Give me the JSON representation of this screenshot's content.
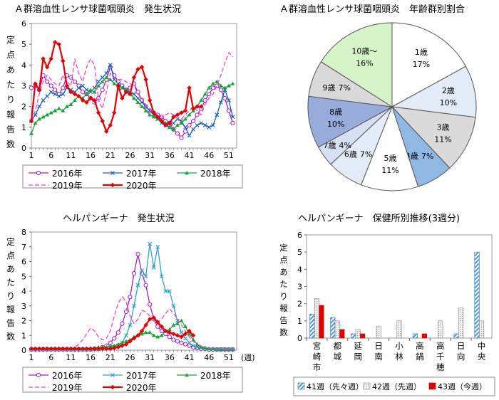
{
  "panels": {
    "strep_weekly_title": "Ａ群溶血性レンサ球菌咽頭炎　発生状況",
    "strep_age_title": "Ａ群溶血性レンサ球菌咽頭炎　年齢群別割合",
    "herp_weekly_title": "ヘルパンギーナ　発生状況",
    "herp_health_title": "ヘルパンギーナ　保健所別推移(3週分)"
  },
  "chart_data": [
    {
      "type": "line",
      "title": "Ａ群溶血性レンサ球菌咽頭炎　発生状況",
      "ylabel": "定点あたり報告数",
      "xlabel": "",
      "x_tick_labels": [
        "1",
        "6",
        "11",
        "16",
        "21",
        "26",
        "31",
        "36",
        "41",
        "46",
        "51"
      ],
      "y_tick_labels": [
        "0",
        "1",
        "2",
        "3",
        "4",
        "5",
        "6"
      ],
      "ylim": [
        0,
        6
      ],
      "xlim": [
        1,
        53
      ],
      "legend_position": "bottom",
      "series": [
        {
          "name": "2016年",
          "color": "#a020c0",
          "marker": "circle-open",
          "dash": "solid",
          "values": [
            2.9,
            3.0,
            2.8,
            3.5,
            3.2,
            3.0,
            2.8,
            2.6,
            2.9,
            3.5,
            3.4,
            3.2,
            3.0,
            2.7,
            2.6,
            2.4,
            2.2,
            2.4,
            2.8,
            3.3,
            3.9,
            3.5,
            3.2,
            3.0,
            2.8,
            2.9,
            3.1,
            2.7,
            2.3,
            2.0,
            1.8,
            1.7,
            1.6,
            1.5,
            1.3,
            1.2,
            0.9,
            0.7,
            0.5,
            0.8,
            1.1,
            1.3,
            1.6,
            1.9,
            2.3,
            2.6,
            2.9,
            3.0,
            2.8,
            2.4,
            1.8,
            1.2
          ]
        },
        {
          "name": "2017年",
          "color": "#2060b0",
          "marker": "x",
          "dash": "solid",
          "values": [
            1.3,
            1.6,
            2.0,
            2.3,
            2.5,
            2.7,
            2.6,
            2.5,
            2.6,
            2.9,
            2.8,
            2.7,
            2.9,
            3.0,
            2.8,
            2.7,
            2.9,
            3.2,
            3.4,
            3.6,
            4.0,
            3.3,
            3.1,
            2.9,
            2.8,
            2.7,
            2.6,
            2.4,
            2.2,
            2.0,
            1.8,
            1.6,
            1.4,
            1.2,
            1.1,
            1.0,
            1.2,
            1.4,
            1.3,
            1.0,
            0.6,
            0.9,
            1.1,
            1.2,
            1.1,
            1.0,
            1.1,
            1.6,
            2.2,
            2.8,
            2.3,
            1.5
          ]
        },
        {
          "name": "2018年",
          "color": "#20a040",
          "marker": "triangle",
          "dash": "solid",
          "values": [
            0.7,
            1.2,
            1.4,
            1.5,
            1.6,
            1.7,
            1.8,
            1.9,
            1.8,
            2.0,
            2.1,
            2.3,
            2.5,
            2.4,
            2.6,
            2.8,
            2.7,
            3.0,
            3.2,
            3.4,
            3.3,
            3.1,
            3.0,
            2.9,
            2.8,
            2.6,
            2.4,
            2.2,
            2.0,
            1.8,
            1.6,
            1.5,
            1.4,
            1.3,
            1.2,
            1.0,
            0.9,
            1.1,
            1.2,
            1.4,
            1.6,
            1.8,
            2.0,
            2.3,
            2.6,
            2.9,
            3.1,
            3.2,
            3.0,
            2.9,
            3.0,
            3.1
          ]
        },
        {
          "name": "2019年",
          "color": "#ee44cc",
          "marker": "none",
          "dash": "dashed",
          "values": [
            1.3,
            1.8,
            2.6,
            3.2,
            3.5,
            3.3,
            3.1,
            3.0,
            3.5,
            3.2,
            3.0,
            4.3,
            3.6,
            3.2,
            3.9,
            4.3,
            4.0,
            2.3,
            1.9,
            2.7,
            3.6,
            3.4,
            3.3,
            3.3,
            3.2,
            3.1,
            3.0,
            2.6,
            2.4,
            2.1,
            1.9,
            1.7,
            1.6,
            1.5,
            1.6,
            1.7,
            1.6,
            1.4,
            1.4,
            1.6,
            1.8,
            2.0,
            1.8,
            1.6,
            2.1,
            2.4,
            2.6,
            3.0,
            3.5,
            4.1,
            4.6,
            4.4
          ]
        },
        {
          "name": "2020年",
          "color": "#e00000",
          "marker": "diamond",
          "dash": "solid",
          "values": [
            1.3,
            3.1,
            2.8,
            4.3,
            3.9,
            4.3,
            5.1,
            5.0,
            4.2,
            3.0,
            2.7,
            2.6,
            2.5,
            2.3,
            2.2,
            2.4,
            2.3,
            1.7,
            1.3,
            0.8,
            1.1,
            1.7,
            3.0,
            2.4,
            2.7,
            2.6,
            3.4,
            3.8,
            3.9,
            3.3,
            2.3,
            1.7,
            1.5,
            1.3,
            1.1,
            1.2,
            1.5,
            1.6,
            1.7,
            1.8,
            2.9,
            1.9,
            2.0,
            2.0
          ]
        }
      ]
    },
    {
      "type": "pie",
      "title": "Ａ群溶血性レンサ球菌咽頭炎　年齢群別割合",
      "labels": [
        "1歳",
        "2歳",
        "3歳",
        "4歳",
        "5歳",
        "6歳",
        "7歳",
        "8歳",
        "9歳",
        "10歳～"
      ],
      "values": [
        17,
        10,
        11,
        7,
        11,
        7,
        4,
        10,
        7,
        16
      ],
      "display_labels": [
        "17%",
        "10%",
        "11%",
        "7%",
        "11%",
        "7%",
        "4%",
        "10%",
        "7%",
        "16%"
      ],
      "colors": [
        "#ffffff",
        "#e3ecf6",
        "#dadada",
        "#8fb8e2",
        "#ffffff",
        "#e3ecf6",
        "#d6e0f2",
        "#98acdc",
        "#d9d9d9",
        "#d5f5c8"
      ]
    },
    {
      "type": "line",
      "title": "ヘルパンギーナ　発生状況",
      "ylabel": "定点あたり報告数",
      "xlabel": "(週)",
      "x_tick_labels": [
        "1",
        "6",
        "11",
        "16",
        "21",
        "26",
        "31",
        "36",
        "41",
        "46",
        "51"
      ],
      "y_tick_labels": [
        "0",
        "1",
        "2",
        "3",
        "4",
        "5",
        "6",
        "7",
        "8"
      ],
      "ylim": [
        0,
        8
      ],
      "xlim": [
        1,
        53
      ],
      "legend_position": "bottom",
      "series": [
        {
          "name": "2016年",
          "color": "#a020c0",
          "marker": "circle-open",
          "dash": "solid",
          "values": [
            0.05,
            0.05,
            0.05,
            0.05,
            0.05,
            0.05,
            0.05,
            0.05,
            0.05,
            0.05,
            0.05,
            0.05,
            0.05,
            0.05,
            0.05,
            0.05,
            0.1,
            0.1,
            0.2,
            0.3,
            0.5,
            0.8,
            1.2,
            1.8,
            2.6,
            3.6,
            5.2,
            6.5,
            5.2,
            4.4,
            3.1,
            2.1,
            1.6,
            1.3,
            1.1,
            0.9,
            0.7,
            0.6,
            0.5,
            0.4,
            0.3,
            0.2,
            0.15,
            0.1,
            0.1,
            0.05,
            0.05,
            0.05,
            0.05,
            0.05,
            0.05,
            0.05
          ]
        },
        {
          "name": "2017年",
          "color": "#30a0c8",
          "marker": "x",
          "dash": "solid",
          "values": [
            0.05,
            0.05,
            0.05,
            0.05,
            0.05,
            0.05,
            0.05,
            0.05,
            0.05,
            0.05,
            0.05,
            0.05,
            0.05,
            0.05,
            0.05,
            0.05,
            0.05,
            0.05,
            0.1,
            0.1,
            0.15,
            0.2,
            0.3,
            0.5,
            1.0,
            1.7,
            3.0,
            4.4,
            5.4,
            5.0,
            7.2,
            5.6,
            7.0,
            5.0,
            4.0,
            4.0,
            3.0,
            2.0,
            1.2,
            0.8,
            0.5,
            0.3,
            0.2,
            0.15,
            0.1,
            0.05,
            0.05,
            0.05,
            0.05,
            0.05,
            0.05,
            0.05
          ]
        },
        {
          "name": "2018年",
          "color": "#20a040",
          "marker": "triangle",
          "dash": "solid",
          "values": [
            0.1,
            0.1,
            0.1,
            0.1,
            0.1,
            0.1,
            0.1,
            0.1,
            0.1,
            0.1,
            0.1,
            0.1,
            0.1,
            0.1,
            0.1,
            0.1,
            0.15,
            0.2,
            0.2,
            0.2,
            0.3,
            0.3,
            0.4,
            0.5,
            0.6,
            0.7,
            0.9,
            1.0,
            1.1,
            1.2,
            1.2,
            1.0,
            0.9,
            1.0,
            1.3,
            1.4,
            1.7,
            1.8,
            2.0,
            1.6,
            1.1,
            0.7,
            0.4,
            0.2,
            0.15,
            0.1,
            0.1,
            0.05,
            0.05,
            0.05,
            0.05,
            0.05
          ]
        },
        {
          "name": "2019年",
          "color": "#ee44cc",
          "marker": "none",
          "dash": "dashed",
          "values": [
            0.05,
            0.05,
            0.05,
            0.05,
            0.05,
            0.05,
            0.05,
            0.05,
            0.05,
            0.05,
            0.1,
            0.2,
            0.4,
            0.7,
            1.1,
            1.5,
            1.3,
            0.9,
            0.7,
            0.8,
            1.3,
            2.3,
            3.2,
            3.6,
            3.3,
            2.3,
            1.8,
            2.1,
            2.7,
            2.6,
            2.3,
            2.1,
            1.9,
            2.1,
            2.5,
            2.8,
            2.5,
            2.1,
            1.7,
            1.3,
            0.9,
            0.6,
            0.4,
            0.3,
            0.2,
            0.15,
            0.1,
            0.05,
            0.05,
            0.05,
            0.05,
            0.05
          ]
        },
        {
          "name": "2020年",
          "color": "#e00000",
          "marker": "diamond",
          "dash": "solid",
          "values": [
            0.1,
            0.1,
            0.1,
            0.1,
            0.1,
            0.1,
            0.1,
            0.1,
            0.1,
            0.1,
            0.1,
            0.1,
            0.1,
            0.1,
            0.1,
            0.1,
            0.1,
            0.1,
            0.1,
            0.1,
            0.1,
            0.15,
            0.2,
            0.3,
            0.4,
            0.6,
            0.8,
            1.0,
            1.3,
            1.7,
            2.1,
            2.2,
            1.9,
            1.6,
            1.3,
            1.2,
            1.1,
            1.0,
            0.9,
            1.1,
            1.3,
            1.0
          ]
        }
      ]
    },
    {
      "type": "bar",
      "title": "ヘルパンギーナ　保健所別推移(3週分)",
      "ylabel": "定点あたり報告数",
      "categories": [
        "宮崎市",
        "都城",
        "延岡",
        "日南",
        "小林",
        "高鍋",
        "高千穂",
        "日向",
        "中央"
      ],
      "y_tick_labels": [
        "0",
        "1",
        "2",
        "3",
        "4",
        "5",
        "6"
      ],
      "ylim": [
        0,
        6
      ],
      "legend_position": "bottom",
      "series": [
        {
          "name": "41週（先々週）",
          "color": "#7fb4e0",
          "pattern": "hatch",
          "values": [
            1.4,
            1.2,
            0.25,
            0.0,
            0.0,
            0.25,
            0.0,
            0.25,
            5.0
          ]
        },
        {
          "name": "42週（先週）",
          "color": "#d0d0d0",
          "pattern": "dots",
          "values": [
            2.3,
            1.0,
            0.5,
            0.67,
            1.0,
            0.0,
            1.0,
            1.75,
            1.0
          ]
        },
        {
          "name": "43週（今週）",
          "color": "#e00000",
          "pattern": "solid",
          "values": [
            1.9,
            0.5,
            0.25,
            0.0,
            0.0,
            0.25,
            0.0,
            0.0,
            0.0
          ]
        }
      ]
    }
  ]
}
